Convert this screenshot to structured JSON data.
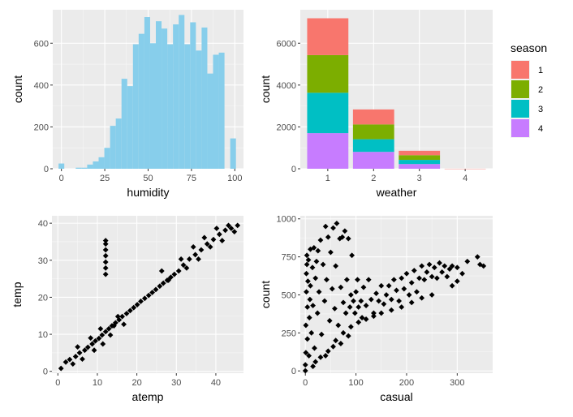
{
  "chart_data": [
    {
      "type": "bar",
      "subtype": "histogram",
      "xlabel": "humidity",
      "ylabel": "count",
      "xlim": [
        -5,
        105
      ],
      "ylim": [
        0,
        760
      ],
      "xticks": [
        0,
        25,
        50,
        75,
        100
      ],
      "yticks": [
        0,
        200,
        400,
        600
      ],
      "fill": "#87CEEB",
      "bin_width": 3.3,
      "bins": [
        {
          "x": 0,
          "value": 25
        },
        {
          "x": 3.3,
          "value": 0
        },
        {
          "x": 6.6,
          "value": 0
        },
        {
          "x": 9.9,
          "value": 5
        },
        {
          "x": 13.2,
          "value": 5
        },
        {
          "x": 16.5,
          "value": 20
        },
        {
          "x": 19.8,
          "value": 35
        },
        {
          "x": 23.1,
          "value": 55
        },
        {
          "x": 26.4,
          "value": 100
        },
        {
          "x": 29.7,
          "value": 205
        },
        {
          "x": 33.0,
          "value": 240
        },
        {
          "x": 36.3,
          "value": 430
        },
        {
          "x": 39.6,
          "value": 395
        },
        {
          "x": 42.9,
          "value": 595
        },
        {
          "x": 46.2,
          "value": 645
        },
        {
          "x": 49.5,
          "value": 725
        },
        {
          "x": 52.8,
          "value": 600
        },
        {
          "x": 56.1,
          "value": 705
        },
        {
          "x": 59.4,
          "value": 670
        },
        {
          "x": 62.7,
          "value": 595
        },
        {
          "x": 66.0,
          "value": 690
        },
        {
          "x": 69.3,
          "value": 735
        },
        {
          "x": 72.6,
          "value": 595
        },
        {
          "x": 75.9,
          "value": 700
        },
        {
          "x": 79.2,
          "value": 565
        },
        {
          "x": 82.5,
          "value": 675
        },
        {
          "x": 85.8,
          "value": 455
        },
        {
          "x": 89.1,
          "value": 545
        },
        {
          "x": 92.4,
          "value": 555
        },
        {
          "x": 95.7,
          "value": 0
        },
        {
          "x": 99.0,
          "value": 145
        }
      ]
    },
    {
      "type": "bar",
      "subtype": "stacked",
      "xlabel": "weather",
      "ylabel": "count",
      "categories": [
        "1",
        "2",
        "3",
        "4"
      ],
      "ylim": [
        0,
        7600
      ],
      "yticks": [
        0,
        2000,
        4000,
        6000
      ],
      "legend": {
        "title": "season",
        "position": "right"
      },
      "series": [
        {
          "name": "1",
          "color": "#F8766D",
          "values": [
            1760,
            715,
            211,
            1
          ]
        },
        {
          "name": "2",
          "color": "#7CAE00",
          "values": [
            1800,
            708,
            224,
            0
          ]
        },
        {
          "name": "3",
          "color": "#00BFC4",
          "values": [
            1930,
            604,
            199,
            0
          ]
        },
        {
          "name": "4",
          "color": "#C77CFF",
          "values": [
            1702,
            807,
            225,
            0
          ]
        }
      ]
    },
    {
      "type": "scatter",
      "xlabel": "atemp",
      "ylabel": "temp",
      "xlim": [
        -1.5,
        47
      ],
      "ylim": [
        -0.5,
        42
      ],
      "xticks": [
        0,
        10,
        20,
        30,
        40
      ],
      "yticks": [
        0,
        10,
        20,
        30,
        40
      ],
      "point_color": "#000000",
      "points": [
        [
          0.8,
          0.8
        ],
        [
          2.0,
          2.5
        ],
        [
          3.0,
          3.2
        ],
        [
          4.5,
          4.0
        ],
        [
          5.5,
          5.0
        ],
        [
          6.8,
          5.7
        ],
        [
          7.6,
          6.5
        ],
        [
          8.7,
          7.4
        ],
        [
          9.5,
          8.2
        ],
        [
          10.4,
          8.9
        ],
        [
          11.2,
          9.8
        ],
        [
          12.1,
          10.7
        ],
        [
          12.9,
          11.5
        ],
        [
          13.7,
          12.3
        ],
        [
          14.6,
          13.1
        ],
        [
          15.5,
          13.9
        ],
        [
          16.3,
          14.8
        ],
        [
          17.4,
          15.6
        ],
        [
          18.3,
          16.4
        ],
        [
          19.2,
          17.2
        ],
        [
          20.1,
          18.0
        ],
        [
          21.0,
          18.9
        ],
        [
          22.0,
          19.7
        ],
        [
          23.0,
          20.5
        ],
        [
          23.9,
          21.3
        ],
        [
          24.8,
          22.1
        ],
        [
          25.8,
          23.0
        ],
        [
          26.7,
          23.8
        ],
        [
          27.7,
          24.6
        ],
        [
          28.6,
          25.4
        ],
        [
          29.5,
          26.2
        ],
        [
          30.6,
          27.1
        ],
        [
          31.8,
          28.7
        ],
        [
          33.3,
          30.3
        ],
        [
          34.8,
          31.5
        ],
        [
          36.3,
          32.8
        ],
        [
          37.8,
          34.4
        ],
        [
          39.4,
          35.6
        ],
        [
          40.9,
          37.0
        ],
        [
          42.4,
          38.1
        ],
        [
          43.9,
          38.6
        ],
        [
          45.5,
          39.4
        ],
        [
          12.1,
          26.2
        ],
        [
          12.1,
          27.9
        ],
        [
          12.1,
          29.5
        ],
        [
          12.1,
          31.2
        ],
        [
          12.1,
          32.8
        ],
        [
          12.1,
          34.4
        ],
        [
          12.1,
          35.3
        ],
        [
          3.8,
          2.0
        ],
        [
          5.0,
          6.6
        ],
        [
          6.2,
          3.3
        ],
        [
          8.3,
          9.0
        ],
        [
          9.2,
          5.7
        ],
        [
          10.8,
          11.5
        ],
        [
          11.4,
          7.4
        ],
        [
          13.3,
          9.8
        ],
        [
          14.2,
          12.3
        ],
        [
          15.2,
          14.8
        ],
        [
          16.7,
          12.7
        ],
        [
          26.3,
          27.1
        ],
        [
          28.0,
          24.6
        ],
        [
          31.2,
          30.3
        ],
        [
          32.6,
          27.9
        ],
        [
          34.3,
          33.6
        ],
        [
          35.6,
          30.3
        ],
        [
          37.1,
          36.1
        ],
        [
          38.6,
          33.6
        ],
        [
          40.2,
          38.6
        ],
        [
          41.6,
          35.3
        ],
        [
          43.2,
          39.4
        ],
        [
          44.7,
          37.7
        ]
      ]
    },
    {
      "type": "scatter",
      "xlabel": "casual",
      "ylabel": "count",
      "xlim": [
        -10,
        370
      ],
      "ylim": [
        -15,
        1020
      ],
      "xticks": [
        0,
        100,
        200,
        300
      ],
      "yticks": [
        0,
        250,
        500,
        750,
        1000
      ],
      "point_color": "#000000",
      "points": [
        [
          0,
          1
        ],
        [
          0,
          40
        ],
        [
          1,
          120
        ],
        [
          1,
          300
        ],
        [
          2,
          520
        ],
        [
          2,
          640
        ],
        [
          3,
          700
        ],
        [
          3,
          760
        ],
        [
          4,
          210
        ],
        [
          4,
          420
        ],
        [
          5,
          590
        ],
        [
          6,
          730
        ],
        [
          7,
          100
        ],
        [
          8,
          350
        ],
        [
          9,
          470
        ],
        [
          10,
          800
        ],
        [
          10,
          560
        ],
        [
          12,
          250
        ],
        [
          14,
          680
        ],
        [
          15,
          430
        ],
        [
          17,
          810
        ],
        [
          18,
          150
        ],
        [
          20,
          610
        ],
        [
          22,
          720
        ],
        [
          24,
          380
        ],
        [
          25,
          790
        ],
        [
          27,
          520
        ],
        [
          30,
          860
        ],
        [
          32,
          240
        ],
        [
          35,
          700
        ],
        [
          38,
          460
        ],
        [
          40,
          950
        ],
        [
          42,
          600
        ],
        [
          45,
          880
        ],
        [
          48,
          330
        ],
        [
          50,
          780
        ],
        [
          53,
          540
        ],
        [
          55,
          940
        ],
        [
          58,
          410
        ],
        [
          60,
          690
        ],
        [
          62,
          970
        ],
        [
          65,
          300
        ],
        [
          68,
          870
        ],
        [
          70,
          550
        ],
        [
          73,
          880
        ],
        [
          75,
          450
        ],
        [
          78,
          920
        ],
        [
          80,
          380
        ],
        [
          82,
          600
        ],
        [
          85,
          870
        ],
        [
          88,
          420
        ],
        [
          90,
          500
        ],
        [
          92,
          760
        ],
        [
          95,
          460
        ],
        [
          98,
          380
        ],
        [
          100,
          520
        ],
        [
          103,
          600
        ],
        [
          105,
          420
        ],
        [
          110,
          460
        ],
        [
          112,
          350
        ],
        [
          115,
          550
        ],
        [
          120,
          430
        ],
        [
          125,
          600
        ],
        [
          130,
          470
        ],
        [
          135,
          380
        ],
        [
          140,
          510
        ],
        [
          145,
          460
        ],
        [
          150,
          560
        ],
        [
          155,
          440
        ],
        [
          160,
          500
        ],
        [
          165,
          560
        ],
        [
          170,
          470
        ],
        [
          175,
          600
        ],
        [
          180,
          530
        ],
        [
          185,
          460
        ],
        [
          190,
          610
        ],
        [
          195,
          540
        ],
        [
          200,
          640
        ],
        [
          205,
          500
        ],
        [
          210,
          580
        ],
        [
          215,
          660
        ],
        [
          220,
          520
        ],
        [
          225,
          610
        ],
        [
          230,
          690
        ],
        [
          235,
          600
        ],
        [
          240,
          650
        ],
        [
          245,
          700
        ],
        [
          250,
          620
        ],
        [
          255,
          680
        ],
        [
          260,
          610
        ],
        [
          265,
          710
        ],
        [
          270,
          650
        ],
        [
          275,
          690
        ],
        [
          280,
          620
        ],
        [
          285,
          670
        ],
        [
          290,
          690
        ],
        [
          300,
          680
        ],
        [
          310,
          640
        ],
        [
          320,
          720
        ],
        [
          340,
          750
        ],
        [
          345,
          700
        ],
        [
          352,
          690
        ],
        [
          290,
          560
        ],
        [
          300,
          590
        ],
        [
          15,
          30
        ],
        [
          30,
          90
        ],
        [
          45,
          130
        ],
        [
          60,
          200
        ],
        [
          75,
          250
        ],
        [
          90,
          290
        ],
        [
          105,
          320
        ],
        [
          120,
          340
        ],
        [
          135,
          360
        ],
        [
          150,
          380
        ],
        [
          170,
          400
        ],
        [
          190,
          420
        ],
        [
          210,
          450
        ],
        [
          230,
          480
        ],
        [
          250,
          500
        ],
        [
          20,
          60
        ],
        [
          40,
          100
        ],
        [
          55,
          160
        ],
        [
          70,
          180
        ],
        [
          85,
          230
        ]
      ]
    }
  ]
}
